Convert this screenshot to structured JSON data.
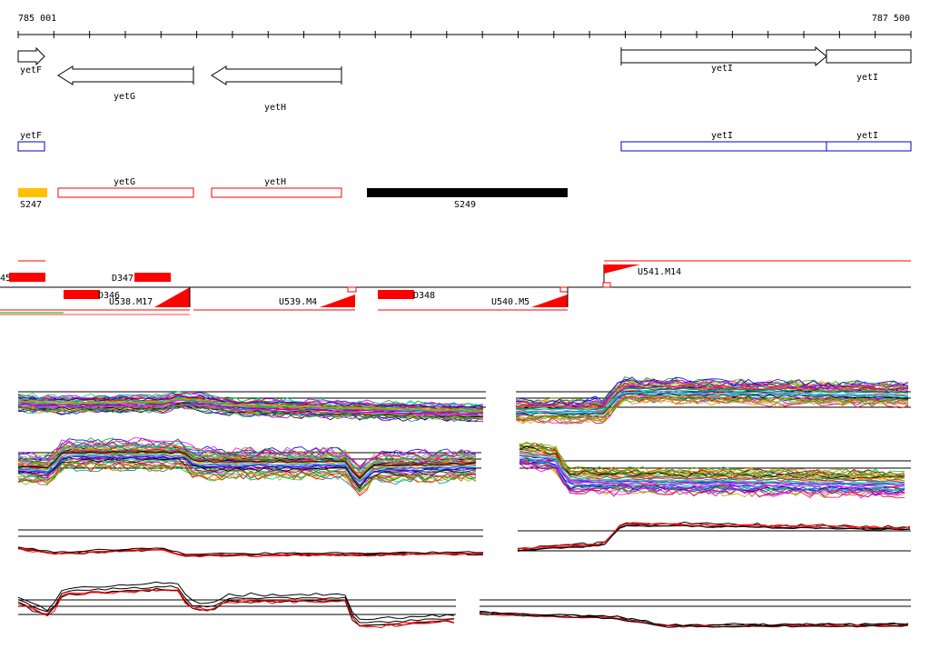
{
  "ruler": {
    "start_label": "785 001",
    "end_label": "787 500",
    "start_coord": 785001,
    "end_coord": 787500,
    "tick_count": 26
  },
  "colors": {
    "gene_outline": "#000000",
    "cds_blue": "#0000cc",
    "feature_red": "#ff0000",
    "feature_orange": "#ffc000",
    "feature_black": "#000000"
  },
  "genes": [
    {
      "label": "yetF",
      "strand": "+"
    },
    {
      "label": "yetG",
      "strand": "-"
    },
    {
      "label": "yetH",
      "strand": "-"
    },
    {
      "label": "yetI",
      "strand": "+"
    },
    {
      "label": "yetI",
      "strand": "+"
    }
  ],
  "cds_top": [
    {
      "label": "yetF"
    },
    {
      "label": "yetI"
    },
    {
      "label": "yetI"
    }
  ],
  "cds_bottom": [
    {
      "label": "yetG"
    },
    {
      "label": "yetH"
    }
  ],
  "segments": [
    {
      "label": "S247",
      "color": "orange"
    },
    {
      "label": "S249",
      "color": "black"
    }
  ],
  "transcription_units": {
    "upstream_labels": [
      "U541.M14"
    ],
    "downstream_labels": [
      "U538.M17",
      "U539.M4",
      "U540.M5"
    ],
    "d_labels": [
      "45",
      "D347",
      "D346",
      "D348"
    ]
  },
  "tracks": {
    "series_colors": [
      "#ff0000",
      "#00aa00",
      "#0000ff",
      "#ff00ff",
      "#00cccc",
      "#cc9900",
      "#9900cc",
      "#ff8800",
      "#008888",
      "#88aa00",
      "#cc0066",
      "#6666ff",
      "#00cc66",
      "#aa5500",
      "#000000"
    ]
  }
}
